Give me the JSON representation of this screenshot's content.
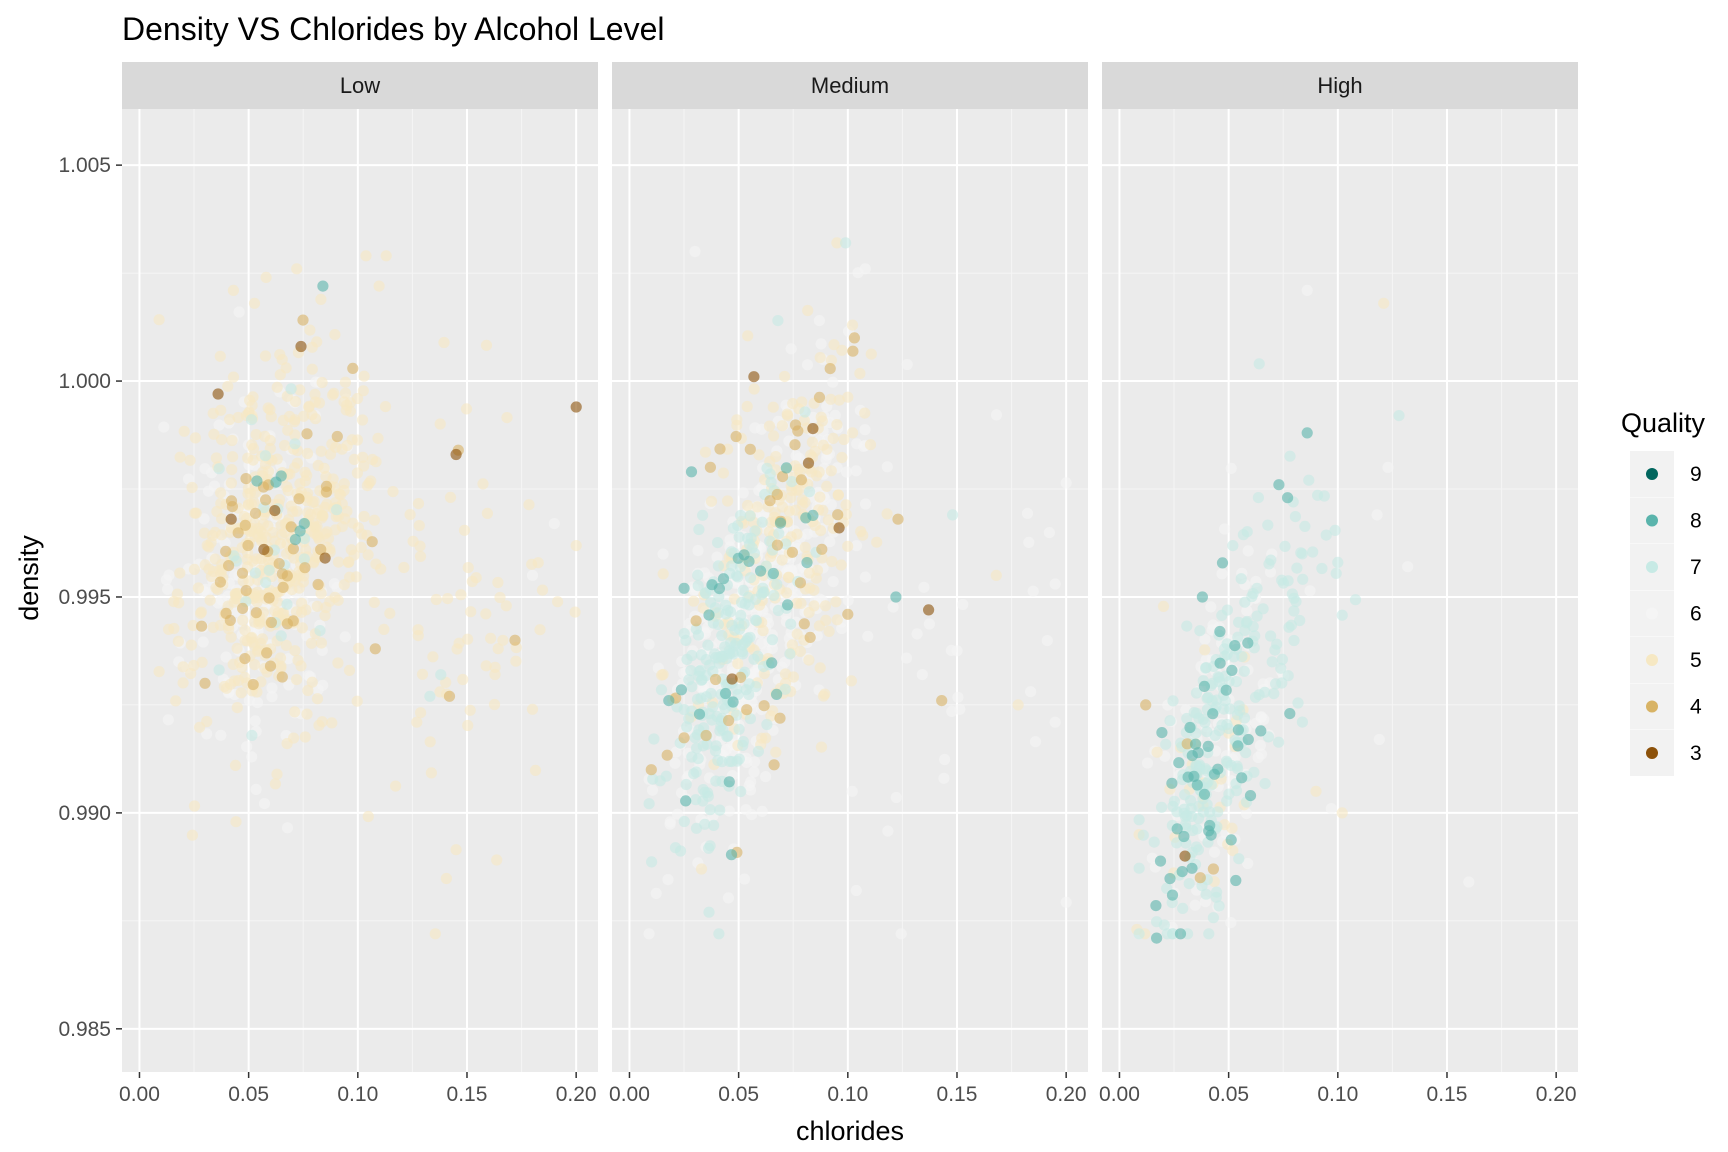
{
  "chart_data": {
    "type": "scatter",
    "title": "Density VS Chlorides by Alcohol Level",
    "xlabel": "chlorides",
    "ylabel": "density",
    "xlim": [
      -0.008,
      0.21
    ],
    "ylim": [
      0.984,
      1.0063
    ],
    "x_ticks": [
      0,
      0.05,
      0.1,
      0.15,
      0.2
    ],
    "x_tick_labels": [
      "0.00",
      "0.05",
      "0.10",
      "0.15",
      "0.20"
    ],
    "y_ticks": [
      0.985,
      0.99,
      0.995,
      1.0,
      1.005
    ],
    "y_tick_labels": [
      "0.985",
      "0.990",
      "0.995",
      "1.000",
      "1.005"
    ],
    "grid": true,
    "legend": {
      "title": "Quality",
      "position": "right",
      "items": [
        {
          "label": "9",
          "color": "#01665e"
        },
        {
          "label": "8",
          "color": "#5ab4ac"
        },
        {
          "label": "7",
          "color": "#c7eae5"
        },
        {
          "label": "6",
          "color": "#f5f5f5"
        },
        {
          "label": "5",
          "color": "#f6e8c3"
        },
        {
          "label": "4",
          "color": "#d8b365"
        },
        {
          "label": "3",
          "color": "#8c510a"
        }
      ]
    },
    "panels": [
      {
        "label": "Low",
        "clusters": [
          {
            "quality": "5",
            "n": 520,
            "cx": 0.065,
            "cy": 0.9963,
            "sx": 0.021,
            "sy": 0.0022,
            "corr": 0.25
          },
          {
            "quality": "6",
            "n": 170,
            "cx": 0.055,
            "cy": 0.9955,
            "sx": 0.018,
            "sy": 0.0023,
            "corr": 0.2
          },
          {
            "quality": "4",
            "n": 45,
            "cx": 0.062,
            "cy": 0.9962,
            "sx": 0.02,
            "sy": 0.0021,
            "corr": 0.2
          },
          {
            "quality": "7",
            "n": 25,
            "cx": 0.058,
            "cy": 0.9962,
            "sx": 0.015,
            "sy": 0.0018,
            "corr": 0.2
          },
          {
            "quality": "8",
            "n": 6,
            "cx": 0.065,
            "cy": 0.9978,
            "sx": 0.01,
            "sy": 0.0012,
            "corr": 0.0
          },
          {
            "quality": "5",
            "n": 65,
            "cx": 0.155,
            "cy": 0.9945,
            "sx": 0.025,
            "sy": 0.0025,
            "corr": 0.1
          }
        ],
        "points": [
          {
            "x": 0.2,
            "y": 0.9994,
            "quality": "3"
          },
          {
            "x": 0.145,
            "y": 0.9983,
            "quality": "3"
          },
          {
            "x": 0.036,
            "y": 0.9997,
            "quality": "3"
          },
          {
            "x": 0.074,
            "y": 1.0008,
            "quality": "3"
          },
          {
            "x": 0.062,
            "y": 0.997,
            "quality": "3"
          },
          {
            "x": 0.085,
            "y": 0.9959,
            "quality": "3"
          },
          {
            "x": 0.042,
            "y": 0.9968,
            "quality": "3"
          },
          {
            "x": 0.057,
            "y": 0.9961,
            "quality": "3"
          },
          {
            "x": 0.146,
            "y": 0.9984,
            "quality": "4"
          },
          {
            "x": 0.172,
            "y": 0.994,
            "quality": "4"
          },
          {
            "x": 0.142,
            "y": 0.9927,
            "quality": "4"
          },
          {
            "x": 0.108,
            "y": 0.9938,
            "quality": "4"
          },
          {
            "x": 0.083,
            "y": 0.9961,
            "quality": "4"
          },
          {
            "x": 0.06,
            "y": 0.9934,
            "quality": "4"
          },
          {
            "x": 0.03,
            "y": 0.993,
            "quality": "4"
          },
          {
            "x": 0.043,
            "y": 1.0021,
            "quality": "5"
          },
          {
            "x": 0.058,
            "y": 1.0024,
            "quality": "5"
          },
          {
            "x": 0.072,
            "y": 1.0026,
            "quality": "5"
          },
          {
            "x": 0.113,
            "y": 1.0029,
            "quality": "5"
          },
          {
            "x": 0.084,
            "y": 1.0022,
            "quality": "8"
          },
          {
            "x": 0.044,
            "y": 0.9911,
            "quality": "5"
          },
          {
            "x": 0.127,
            "y": 0.9921,
            "quality": "5"
          },
          {
            "x": 0.18,
            "y": 0.9924,
            "quality": "5"
          },
          {
            "x": 0.19,
            "y": 0.9967,
            "quality": "6"
          },
          {
            "x": 0.18,
            "y": 0.9955,
            "quality": "6"
          },
          {
            "x": 0.138,
            "y": 0.9932,
            "quality": "7"
          },
          {
            "x": 0.133,
            "y": 0.9927,
            "quality": "7"
          },
          {
            "x": 0.018,
            "y": 0.9935,
            "quality": "6"
          }
        ]
      },
      {
        "label": "Medium",
        "clusters": [
          {
            "quality": "6",
            "n": 420,
            "cx": 0.06,
            "cy": 0.9948,
            "sx": 0.02,
            "sy": 0.0025,
            "corr": 0.6
          },
          {
            "quality": "5",
            "n": 240,
            "cx": 0.07,
            "cy": 0.9963,
            "sx": 0.02,
            "sy": 0.0022,
            "corr": 0.5
          },
          {
            "quality": "7",
            "n": 230,
            "cx": 0.045,
            "cy": 0.9935,
            "sx": 0.015,
            "sy": 0.0023,
            "corr": 0.6
          },
          {
            "quality": "4",
            "n": 35,
            "cx": 0.06,
            "cy": 0.9955,
            "sx": 0.02,
            "sy": 0.0025,
            "corr": 0.5
          },
          {
            "quality": "8",
            "n": 25,
            "cx": 0.055,
            "cy": 0.9945,
            "sx": 0.018,
            "sy": 0.0022,
            "corr": 0.5
          },
          {
            "quality": "6",
            "n": 30,
            "cx": 0.14,
            "cy": 0.994,
            "sx": 0.03,
            "sy": 0.003,
            "corr": 0.2
          }
        ],
        "points": [
          {
            "x": 0.057,
            "y": 1.0001,
            "quality": "3"
          },
          {
            "x": 0.084,
            "y": 0.9989,
            "quality": "3"
          },
          {
            "x": 0.082,
            "y": 0.9981,
            "quality": "3"
          },
          {
            "x": 0.096,
            "y": 0.9966,
            "quality": "3"
          },
          {
            "x": 0.137,
            "y": 0.9947,
            "quality": "3"
          },
          {
            "x": 0.047,
            "y": 0.9931,
            "quality": "3"
          },
          {
            "x": 0.103,
            "y": 1.001,
            "quality": "4"
          },
          {
            "x": 0.123,
            "y": 0.9968,
            "quality": "4"
          },
          {
            "x": 0.143,
            "y": 0.9926,
            "quality": "4"
          },
          {
            "x": 0.01,
            "y": 0.991,
            "quality": "4"
          },
          {
            "x": 0.1,
            "y": 0.9946,
            "quality": "4"
          },
          {
            "x": 0.122,
            "y": 0.995,
            "quality": "8"
          },
          {
            "x": 0.025,
            "y": 0.9952,
            "quality": "8"
          },
          {
            "x": 0.018,
            "y": 0.9926,
            "quality": "8"
          },
          {
            "x": 0.03,
            "y": 1.003,
            "quality": "6"
          },
          {
            "x": 0.095,
            "y": 1.0032,
            "quality": "5"
          },
          {
            "x": 0.099,
            "y": 1.0032,
            "quality": "7"
          },
          {
            "x": 0.108,
            "y": 1.0026,
            "quality": "6"
          },
          {
            "x": 0.068,
            "y": 1.0014,
            "quality": "7"
          },
          {
            "x": 0.087,
            "y": 1.0014,
            "quality": "6"
          },
          {
            "x": 0.168,
            "y": 0.9955,
            "quality": "5"
          },
          {
            "x": 0.195,
            "y": 0.9953,
            "quality": "6"
          },
          {
            "x": 0.195,
            "y": 0.9921,
            "quality": "6"
          },
          {
            "x": 0.178,
            "y": 0.9925,
            "quality": "5"
          },
          {
            "x": 0.144,
            "y": 0.9908,
            "quality": "6"
          },
          {
            "x": 0.102,
            "y": 0.9905,
            "quality": "6"
          },
          {
            "x": 0.148,
            "y": 0.9969,
            "quality": "7"
          },
          {
            "x": 0.033,
            "y": 0.9887,
            "quality": "5"
          }
        ]
      },
      {
        "label": "High",
        "clusters": [
          {
            "quality": "7",
            "n": 170,
            "cx": 0.04,
            "cy": 0.9912,
            "sx": 0.012,
            "sy": 0.0022,
            "corr": 0.6
          },
          {
            "quality": "6",
            "n": 110,
            "cx": 0.045,
            "cy": 0.9915,
            "sx": 0.015,
            "sy": 0.0025,
            "corr": 0.6
          },
          {
            "quality": "5",
            "n": 30,
            "cx": 0.04,
            "cy": 0.991,
            "sx": 0.018,
            "sy": 0.0022,
            "corr": 0.4
          },
          {
            "quality": "8",
            "n": 40,
            "cx": 0.038,
            "cy": 0.9905,
            "sx": 0.012,
            "sy": 0.0018,
            "corr": 0.5
          },
          {
            "quality": "7",
            "n": 70,
            "cx": 0.075,
            "cy": 0.9945,
            "sx": 0.016,
            "sy": 0.0018,
            "corr": 0.5
          }
        ],
        "points": [
          {
            "x": 0.086,
            "y": 0.9988,
            "quality": "8"
          },
          {
            "x": 0.073,
            "y": 0.9976,
            "quality": "8"
          },
          {
            "x": 0.077,
            "y": 0.9973,
            "quality": "8"
          },
          {
            "x": 0.078,
            "y": 0.9923,
            "quality": "8"
          },
          {
            "x": 0.06,
            "y": 0.9904,
            "quality": "8"
          },
          {
            "x": 0.059,
            "y": 0.9917,
            "quality": "8"
          },
          {
            "x": 0.017,
            "y": 0.9871,
            "quality": "8"
          },
          {
            "x": 0.038,
            "y": 0.995,
            "quality": "8"
          },
          {
            "x": 0.046,
            "y": 0.9942,
            "quality": "8"
          },
          {
            "x": 0.043,
            "y": 0.9887,
            "quality": "4"
          },
          {
            "x": 0.037,
            "y": 0.9885,
            "quality": "4"
          },
          {
            "x": 0.012,
            "y": 0.9925,
            "quality": "4"
          },
          {
            "x": 0.031,
            "y": 0.9916,
            "quality": "4"
          },
          {
            "x": 0.03,
            "y": 0.989,
            "quality": "3"
          },
          {
            "x": 0.086,
            "y": 1.0021,
            "quality": "6"
          },
          {
            "x": 0.121,
            "y": 1.0018,
            "quality": "5"
          },
          {
            "x": 0.064,
            "y": 1.0004,
            "quality": "7"
          },
          {
            "x": 0.128,
            "y": 0.9992,
            "quality": "7"
          },
          {
            "x": 0.123,
            "y": 0.998,
            "quality": "6"
          },
          {
            "x": 0.132,
            "y": 0.9957,
            "quality": "6"
          },
          {
            "x": 0.118,
            "y": 0.9969,
            "quality": "6"
          },
          {
            "x": 0.119,
            "y": 0.9917,
            "quality": "6"
          },
          {
            "x": 0.097,
            "y": 0.9901,
            "quality": "6"
          },
          {
            "x": 0.102,
            "y": 0.99,
            "quality": "5"
          },
          {
            "x": 0.16,
            "y": 0.9884,
            "quality": "6"
          },
          {
            "x": 0.008,
            "y": 0.9873,
            "quality": "5"
          },
          {
            "x": 0.09,
            "y": 0.9905,
            "quality": "5"
          },
          {
            "x": 0.1,
            "y": 0.9958,
            "quality": "7"
          }
        ]
      }
    ]
  }
}
